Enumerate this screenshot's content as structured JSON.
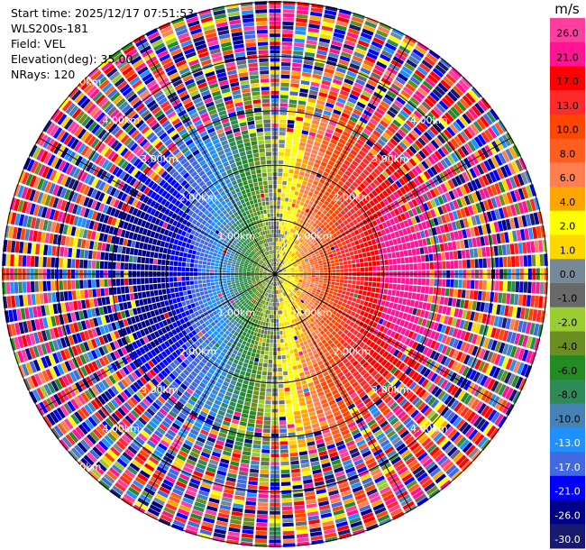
{
  "header": {
    "start_time": "Start time: 2025/12/17 07:51:53",
    "instrument": "WLS200s-181",
    "field": "Field: VEL",
    "elevation": "Elevation(deg): 35.00",
    "nrays": "NRays: 120"
  },
  "chart_data": {
    "type": "heatmap",
    "projection": "polar-ppi",
    "field": "VEL",
    "unit": "m/s",
    "n_rays": 120,
    "elevation_deg": 35.0,
    "max_range_km": 5.0,
    "range_rings_km": [
      1,
      2,
      3,
      4,
      5
    ],
    "range_ring_labels": [
      "1.00km",
      "2.00km",
      "3.00km",
      "4.00km",
      "5.00km"
    ],
    "spoke_angles_deg": [
      0,
      30,
      60,
      90,
      120,
      150,
      180,
      210,
      240,
      270,
      300,
      330
    ],
    "flow": {
      "description_free": true,
      "approach_azimuth_deg": 90,
      "max_speed_ms": 24,
      "noise_onset_km": 2.6
    },
    "colorbar": {
      "unit_label": "m/s",
      "tick_labels": [
        "26.0",
        "21.0",
        "17.0",
        "13.0",
        "10.0",
        "8.0",
        "6.0",
        "4.0",
        "2.0",
        "1.0",
        "0.0",
        "-1.0",
        "-2.0",
        "-4.0",
        "-6.0",
        "-8.0",
        "-10.0",
        "-13.0",
        "-17.0",
        "-21.0",
        "-26.0",
        "-30.0"
      ],
      "bins": [
        {
          "lo": 26,
          "hi": 30,
          "color": "#ff3ea0"
        },
        {
          "lo": 21,
          "hi": 26,
          "color": "#ff1493"
        },
        {
          "lo": 17,
          "hi": 21,
          "color": "#ff0000"
        },
        {
          "lo": 13,
          "hi": 17,
          "color": "#ff2a2a"
        },
        {
          "lo": 10,
          "hi": 13,
          "color": "#ff4500"
        },
        {
          "lo": 8,
          "hi": 10,
          "color": "#ff5e1f"
        },
        {
          "lo": 6,
          "hi": 8,
          "color": "#ff7f50"
        },
        {
          "lo": 4,
          "hi": 6,
          "color": "#ffa500"
        },
        {
          "lo": 2,
          "hi": 4,
          "color": "#ffff00"
        },
        {
          "lo": 1,
          "hi": 2,
          "color": "#ffd700"
        },
        {
          "lo": 0,
          "hi": 1,
          "color": "#778899"
        },
        {
          "lo": -1,
          "hi": 0,
          "color": "#696969"
        },
        {
          "lo": -2,
          "hi": -1,
          "color": "#9acd32"
        },
        {
          "lo": -4,
          "hi": -2,
          "color": "#6b8e23"
        },
        {
          "lo": -6,
          "hi": -4,
          "color": "#228b22"
        },
        {
          "lo": -8,
          "hi": -6,
          "color": "#2e8b57"
        },
        {
          "lo": -10,
          "hi": -8,
          "color": "#4682b4"
        },
        {
          "lo": -13,
          "hi": -10,
          "color": "#1e90ff"
        },
        {
          "lo": -17,
          "hi": -13,
          "color": "#4169e1"
        },
        {
          "lo": -21,
          "hi": -17,
          "color": "#0000ff"
        },
        {
          "lo": -26,
          "hi": -21,
          "color": "#00008b"
        },
        {
          "lo": -30,
          "hi": -26,
          "color": "#191970"
        }
      ]
    }
  }
}
